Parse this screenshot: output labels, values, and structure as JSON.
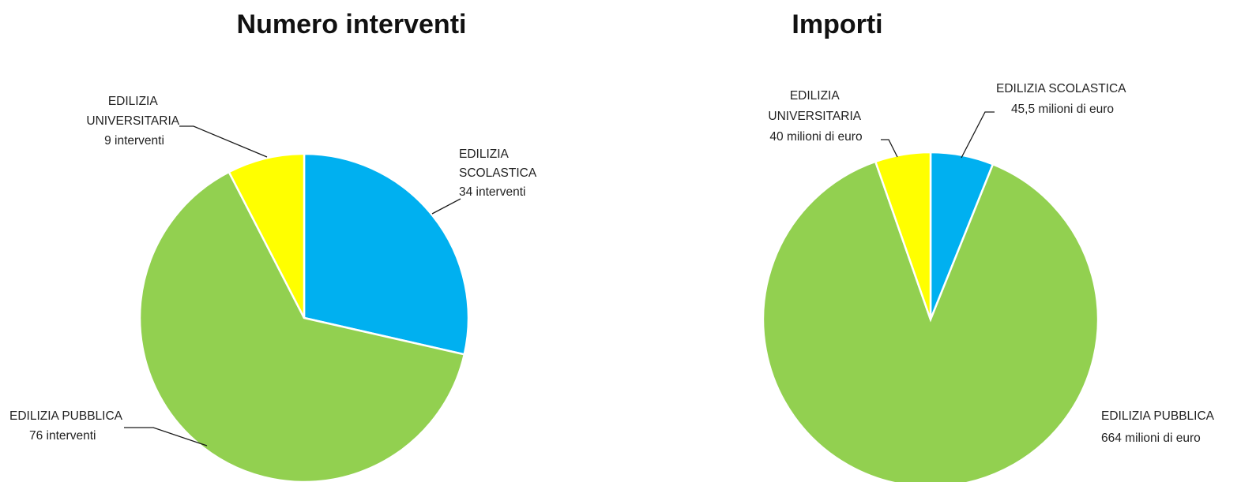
{
  "chart_data": [
    {
      "type": "pie",
      "title": "Numero interventi",
      "slices": [
        {
          "name": "EDILIZIA SCOLASTICA",
          "value": 34,
          "color": "#00B0F0",
          "label_lines": [
            "EDILIZIA",
            "SCOLASTICA",
            "34 interventi"
          ]
        },
        {
          "name": "EDILIZIA PUBBLICA",
          "value": 76,
          "color": "#92D050",
          "label_lines": [
            "EDILIZIA PUBBLICA",
            "76 interventi"
          ]
        },
        {
          "name": "EDILIZIA UNIVERSITARIA",
          "value": 9,
          "color": "#FFFF00",
          "label_lines": [
            "EDILIZIA",
            "UNIVERSITARIA",
            "9 interventi"
          ]
        }
      ]
    },
    {
      "type": "pie",
      "title": "Importi",
      "slices": [
        {
          "name": "EDILIZIA SCOLASTICA",
          "value": 45.5,
          "color": "#00B0F0",
          "label_lines": [
            "EDILIZIA SCOLASTICA",
            "45,5 milioni di euro"
          ]
        },
        {
          "name": "EDILIZIA PUBBLICA",
          "value": 664,
          "color": "#92D050",
          "label_lines": [
            "EDILIZIA PUBBLICA",
            "664 milioni di euro"
          ]
        },
        {
          "name": "EDILIZIA UNIVERSITARIA",
          "value": 40,
          "color": "#FFFF00",
          "label_lines": [
            "EDILIZIA",
            "UNIVERSITARIA",
            "40 milioni di euro"
          ]
        }
      ]
    }
  ]
}
